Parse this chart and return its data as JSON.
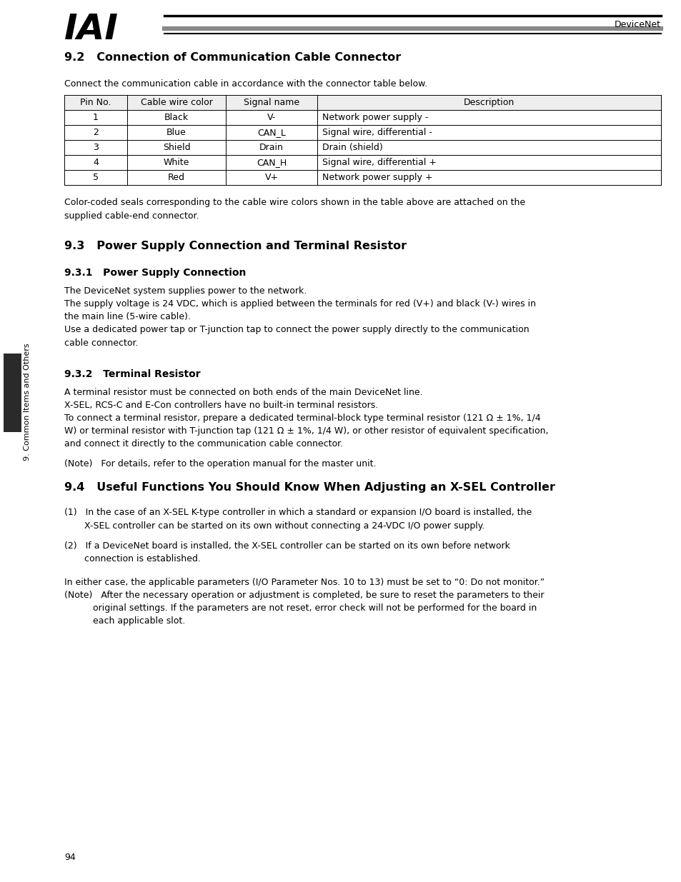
{
  "page_width": 9.54,
  "page_height": 12.35,
  "bg_color": "#ffffff",
  "logo_text": "IAI",
  "header_label": "DeviceNet",
  "section_92_title": "9.2   Connection of Communication Cable Connector",
  "section_92_intro": "Connect the communication cable in accordance with the connector table below.",
  "table_headers": [
    "Pin No.",
    "Cable wire color",
    "Signal name",
    "Description"
  ],
  "table_rows": [
    [
      "1",
      "Black",
      "V-",
      "Network power supply -"
    ],
    [
      "2",
      "Blue",
      "CAN_L",
      "Signal wire, differential -"
    ],
    [
      "3",
      "Shield",
      "Drain",
      "Drain (shield)"
    ],
    [
      "4",
      "White",
      "CAN_H",
      "Signal wire, differential +"
    ],
    [
      "5",
      "Red",
      "V+",
      "Network power supply +"
    ]
  ],
  "section_92_note": "Color-coded seals corresponding to the cable wire colors shown in the table above are attached on the\nsupplied cable-end connector.",
  "section_93_title": "9.3   Power Supply Connection and Terminal Resistor",
  "section_931_title": "9.3.1   Power Supply Connection",
  "section_931_lines": [
    "The DeviceNet system supplies power to the network.",
    "The supply voltage is 24 VDC, which is applied between the terminals for red (V+) and black (V-) wires in",
    "the main line (5-wire cable).",
    "Use a dedicated power tap or T-junction tap to connect the power supply directly to the communication",
    "cable connector."
  ],
  "section_932_title": "9.3.2   Terminal Resistor",
  "section_932_lines": [
    "A terminal resistor must be connected on both ends of the main DeviceNet line.",
    "X-SEL, RCS-C and E-Con controllers have no built-in terminal resistors.",
    "To connect a terminal resistor, prepare a dedicated terminal-block type terminal resistor (121 Ω ± 1%, 1/4",
    "W) or terminal resistor with T-junction tap (121 Ω ± 1%, 1/4 W), or other resistor of equivalent specification,",
    "and connect it directly to the communication cable connector."
  ],
  "section_932_note": "(Note)   For details, refer to the operation manual for the master unit.",
  "section_94_title": "9.4   Useful Functions You Should Know When Adjusting an X-SEL Controller",
  "section_94_item1_lines": [
    "(1)   In the case of an X-SEL K-type controller in which a standard or expansion I/O board is installed, the",
    "       X-SEL controller can be started on its own without connecting a 24-VDC I/O power supply."
  ],
  "section_94_item2_lines": [
    "(2)   If a DeviceNet board is installed, the X-SEL controller can be started on its own before network",
    "       connection is established."
  ],
  "section_94_footer1": "In either case, the applicable parameters (I/O Parameter Nos. 10 to 13) must be set to “0: Do not monitor.”",
  "section_94_footer2_lines": [
    "(Note)   After the necessary operation or adjustment is completed, be sure to reset the parameters to their",
    "          original settings. If the parameters are not reset, error check will not be performed for the board in",
    "          each applicable slot."
  ],
  "page_number": "94",
  "sidebar_text": "9. Common Items and Others"
}
